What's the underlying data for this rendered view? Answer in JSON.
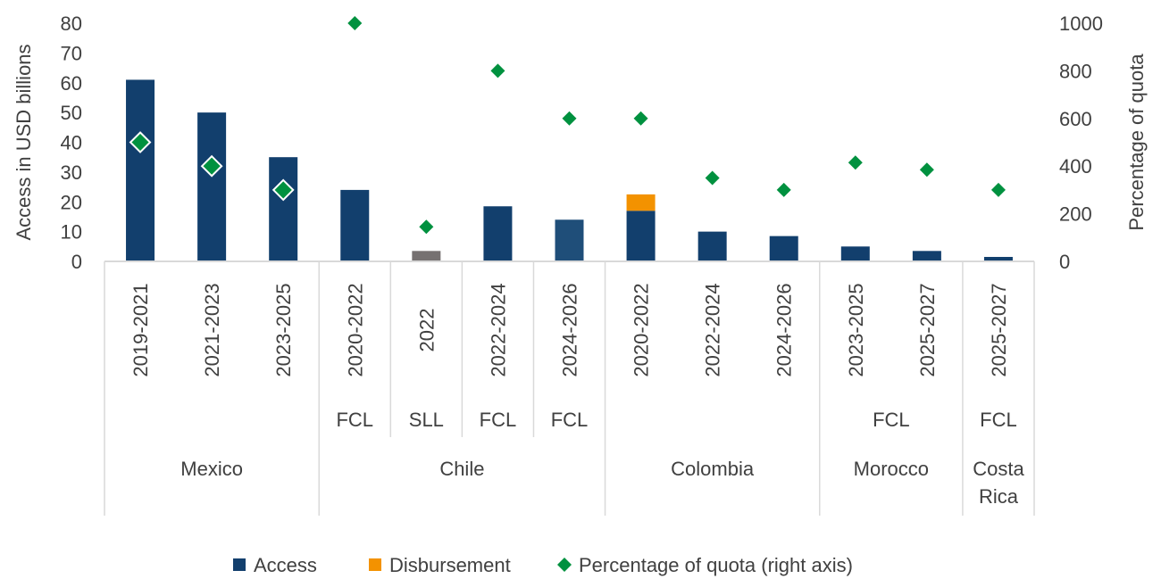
{
  "chart_data": {
    "type": "bar",
    "ylabel": "Access in USD billions",
    "y2label": "Percentage of quota",
    "ylim": [
      0,
      80
    ],
    "y2lim": [
      0,
      1000
    ],
    "yticks": [
      0,
      10,
      20,
      30,
      40,
      50,
      60,
      70,
      80
    ],
    "y2ticks": [
      0,
      200,
      400,
      600,
      800,
      1000
    ],
    "grid": false,
    "legend_position": "bottom",
    "colors": {
      "access": "#123F6D",
      "access_alt": "#1F4E79",
      "sll": "#767171",
      "disbursement": "#F39200",
      "quota": "#00913F"
    },
    "categories": [
      "2019-2021",
      "2021-2023",
      "2023-2025",
      "2020-2022",
      "2022",
      "2022-2024",
      "2024-2026",
      "2020-2022",
      "2022-2024",
      "2024-2026",
      "2023-2025",
      "2025-2027",
      "2025-2027"
    ],
    "instruments": [
      {
        "label": "FCL",
        "span": [
          3,
          3
        ]
      },
      {
        "label": "SLL",
        "span": [
          4,
          4
        ]
      },
      {
        "label": "FCL",
        "span": [
          5,
          5
        ]
      },
      {
        "label": "FCL",
        "span": [
          6,
          6
        ]
      },
      {
        "label": "FCL",
        "span": [
          10,
          11
        ]
      },
      {
        "label": "FCL",
        "span": [
          12,
          12
        ]
      }
    ],
    "groups": [
      {
        "label": "Mexico",
        "lines": [
          "Mexico"
        ],
        "span": [
          0,
          2
        ]
      },
      {
        "label": "Chile",
        "lines": [
          "Chile"
        ],
        "span": [
          3,
          6
        ]
      },
      {
        "label": "Colombia",
        "lines": [
          "Colombia"
        ],
        "span": [
          7,
          9
        ]
      },
      {
        "label": "Morocco",
        "lines": [
          "Morocco"
        ],
        "span": [
          10,
          11
        ]
      },
      {
        "label": "Costa Rica",
        "lines": [
          "Costa",
          "Rica"
        ],
        "span": [
          12,
          12
        ]
      }
    ],
    "series": [
      {
        "name": "Access",
        "kind": "bar",
        "values": [
          61,
          50,
          35,
          24,
          3.5,
          18.5,
          14,
          17,
          10,
          8.5,
          5,
          3.5,
          1.5
        ]
      },
      {
        "name": "Disbursement",
        "kind": "bar-stacked",
        "values": [
          0,
          0,
          0,
          0,
          0,
          0,
          0,
          5.5,
          0,
          0,
          0,
          0,
          0
        ]
      },
      {
        "name": "Percentage of quota (right axis)",
        "kind": "scatter",
        "axis": "right",
        "values": [
          500,
          400,
          300,
          1000,
          145,
          800,
          600,
          600,
          350,
          300,
          415,
          385,
          300
        ]
      }
    ]
  }
}
